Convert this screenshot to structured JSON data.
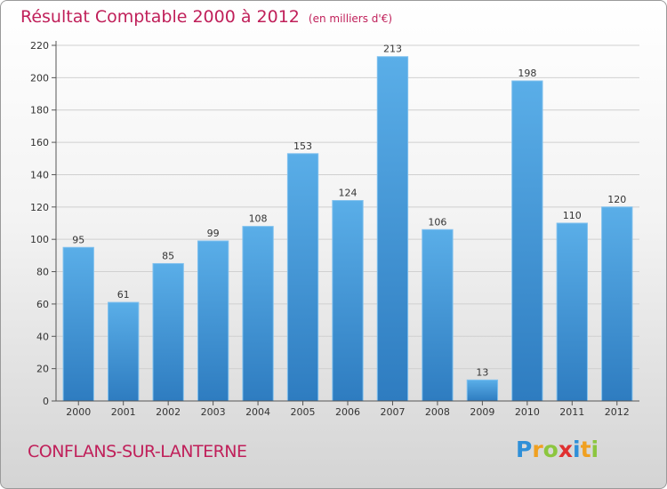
{
  "chart_data": {
    "type": "bar",
    "title": "Résultat Comptable 2000 à 2012",
    "subtitle": "(en milliers d'€)",
    "categories": [
      "2000",
      "2001",
      "2002",
      "2003",
      "2004",
      "2005",
      "2006",
      "2007",
      "2008",
      "2009",
      "2010",
      "2011",
      "2012"
    ],
    "values": [
      95,
      61,
      85,
      99,
      108,
      153,
      124,
      213,
      106,
      13,
      198,
      110,
      120
    ],
    "ylim": [
      0,
      220
    ],
    "yticks": [
      0,
      20,
      40,
      60,
      80,
      100,
      120,
      140,
      160,
      180,
      200,
      220
    ],
    "xlabel": "",
    "ylabel": "",
    "grid": true,
    "bar_color_top": "#5aaee8",
    "bar_color_bottom": "#2e7cc0"
  },
  "footer": {
    "commune": "CONFLANS-SUR-LANTERNE"
  },
  "logo": {
    "letters": [
      {
        "char": "P",
        "color": "#2f8fd8"
      },
      {
        "char": "r",
        "color": "#f0a020"
      },
      {
        "char": "o",
        "color": "#8cc63f"
      },
      {
        "char": "x",
        "color": "#e03030"
      },
      {
        "char": "i",
        "color": "#2f8fd8"
      },
      {
        "char": "t",
        "color": "#f0a020"
      },
      {
        "char": "i",
        "color": "#8cc63f"
      }
    ]
  },
  "colors": {
    "title": "#c0205a",
    "grid": "#d0d0d0",
    "axis": "#555555"
  }
}
